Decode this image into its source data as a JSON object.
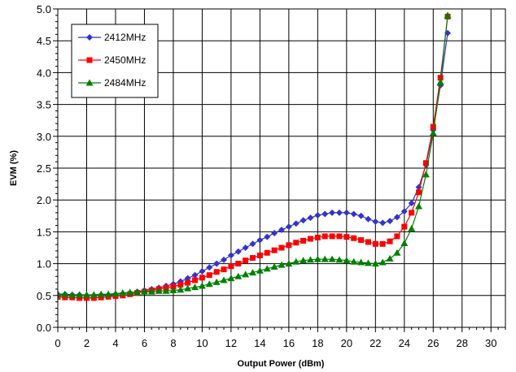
{
  "chart_data": {
    "type": "line",
    "title": "",
    "xlabel": "Output Power (dBm)",
    "ylabel": "EVM (%)",
    "xlim": [
      0,
      31
    ],
    "ylim": [
      0,
      5
    ],
    "xticks": [
      0,
      2,
      4,
      6,
      8,
      10,
      12,
      14,
      16,
      18,
      20,
      22,
      24,
      26,
      28,
      30
    ],
    "yticks": [
      0.0,
      0.5,
      1.0,
      1.5,
      2.0,
      2.5,
      3.0,
      3.5,
      4.0,
      4.5,
      5.0
    ],
    "ytick_labels": [
      "0.0",
      "0.5",
      "1.0",
      "1.5",
      "2.0",
      "2.5",
      "3.0",
      "3.5",
      "4.0",
      "4.5",
      "5.0"
    ],
    "grid": true,
    "legend_position": "top-left",
    "series": [
      {
        "name": "2412MHz",
        "color": "#3333cc",
        "marker": "diamond",
        "x": [
          0,
          0.5,
          1,
          1.5,
          2,
          2.5,
          3,
          3.5,
          4,
          4.5,
          5,
          5.5,
          6,
          6.5,
          7,
          7.5,
          8,
          8.5,
          9,
          9.5,
          10,
          10.5,
          11,
          11.5,
          12,
          12.5,
          13,
          13.5,
          14,
          14.5,
          15,
          15.5,
          16,
          16.5,
          17,
          17.5,
          18,
          18.5,
          19,
          19.5,
          20,
          20.5,
          21,
          21.5,
          22,
          22.5,
          23,
          23.5,
          24,
          24.5,
          25,
          25.5,
          26,
          26.5,
          27
        ],
        "values": [
          0.52,
          0.52,
          0.51,
          0.51,
          0.5,
          0.5,
          0.51,
          0.51,
          0.52,
          0.53,
          0.54,
          0.56,
          0.58,
          0.6,
          0.62,
          0.65,
          0.68,
          0.72,
          0.77,
          0.82,
          0.88,
          0.94,
          1.0,
          1.06,
          1.13,
          1.19,
          1.25,
          1.31,
          1.37,
          1.42,
          1.48,
          1.53,
          1.58,
          1.63,
          1.68,
          1.72,
          1.76,
          1.78,
          1.8,
          1.8,
          1.8,
          1.78,
          1.75,
          1.7,
          1.66,
          1.64,
          1.67,
          1.73,
          1.82,
          1.95,
          2.2,
          2.55,
          3.1,
          3.8,
          4.62
        ]
      },
      {
        "name": "2450MHz",
        "color": "#ff0000",
        "marker": "square",
        "x": [
          0,
          0.5,
          1,
          1.5,
          2,
          2.5,
          3,
          3.5,
          4,
          4.5,
          5,
          5.5,
          6,
          6.5,
          7,
          7.5,
          8,
          8.5,
          9,
          9.5,
          10,
          10.5,
          11,
          11.5,
          12,
          12.5,
          13,
          13.5,
          14,
          14.5,
          15,
          15.5,
          16,
          16.5,
          17,
          17.5,
          18,
          18.5,
          19,
          19.5,
          20,
          20.5,
          21,
          21.5,
          22,
          22.5,
          23,
          23.5,
          24,
          24.5,
          25,
          25.5,
          26,
          26.5,
          27
        ],
        "values": [
          0.48,
          0.47,
          0.47,
          0.46,
          0.46,
          0.46,
          0.47,
          0.48,
          0.49,
          0.5,
          0.52,
          0.54,
          0.56,
          0.58,
          0.6,
          0.62,
          0.64,
          0.67,
          0.7,
          0.74,
          0.78,
          0.82,
          0.87,
          0.91,
          0.96,
          1.0,
          1.05,
          1.09,
          1.13,
          1.17,
          1.21,
          1.25,
          1.29,
          1.33,
          1.36,
          1.39,
          1.41,
          1.43,
          1.43,
          1.43,
          1.42,
          1.4,
          1.37,
          1.34,
          1.31,
          1.31,
          1.35,
          1.43,
          1.58,
          1.8,
          2.12,
          2.58,
          3.15,
          3.92,
          4.88
        ]
      },
      {
        "name": "2484MHz",
        "color": "#008000",
        "marker": "triangle",
        "x": [
          0,
          0.5,
          1,
          1.5,
          2,
          2.5,
          3,
          3.5,
          4,
          4.5,
          5,
          5.5,
          6,
          6.5,
          7,
          7.5,
          8,
          8.5,
          9,
          9.5,
          10,
          10.5,
          11,
          11.5,
          12,
          12.5,
          13,
          13.5,
          14,
          14.5,
          15,
          15.5,
          16,
          16.5,
          17,
          17.5,
          18,
          18.5,
          19,
          19.5,
          20,
          20.5,
          21,
          21.5,
          22,
          22.5,
          23,
          23.5,
          24,
          24.5,
          25,
          25.5,
          26,
          26.5,
          27
        ],
        "values": [
          0.52,
          0.52,
          0.51,
          0.51,
          0.51,
          0.51,
          0.52,
          0.52,
          0.53,
          0.54,
          0.55,
          0.55,
          0.56,
          0.56,
          0.57,
          0.57,
          0.58,
          0.59,
          0.61,
          0.63,
          0.65,
          0.68,
          0.71,
          0.74,
          0.77,
          0.8,
          0.83,
          0.86,
          0.89,
          0.92,
          0.95,
          0.98,
          1.0,
          1.03,
          1.05,
          1.06,
          1.07,
          1.07,
          1.07,
          1.06,
          1.05,
          1.03,
          1.02,
          1.01,
          1.0,
          1.02,
          1.08,
          1.17,
          1.32,
          1.55,
          1.9,
          2.4,
          3.05,
          3.85,
          4.9
        ]
      }
    ]
  }
}
